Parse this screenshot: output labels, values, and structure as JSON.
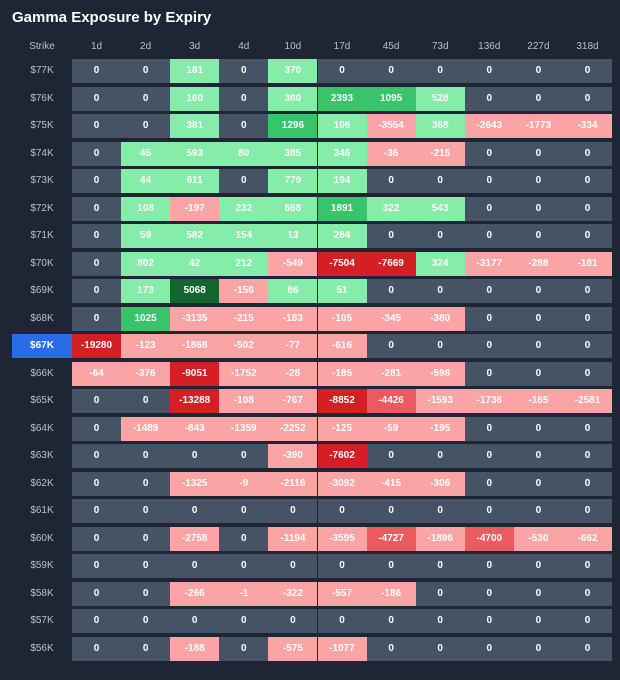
{
  "title": "Gamma Exposure by Expiry",
  "strike_header": "Strike",
  "current_strike": "$67K",
  "colors": {
    "background": "#1e2636",
    "neutral": "#465365",
    "pos_light": "#86ecaa",
    "pos_mid": "#37c46a",
    "pos_dark": "#14652e",
    "neg_light": "#fba4a6",
    "neg_mid": "#ea5a5e",
    "neg_dark": "#d42024",
    "current_strike": "#2b6be6"
  },
  "chart_data": {
    "type": "heatmap",
    "title": "Gamma Exposure by Expiry",
    "x": [
      "1d",
      "2d",
      "3d",
      "4d",
      "10d",
      "17d",
      "45d",
      "73d",
      "136d",
      "227d",
      "318d"
    ],
    "y": [
      "$77K",
      "$76K",
      "$75K",
      "$74K",
      "$73K",
      "$72K",
      "$71K",
      "$70K",
      "$69K",
      "$68K",
      "$67K",
      "$66K",
      "$65K",
      "$64K",
      "$63K",
      "$62K",
      "$61K",
      "$60K",
      "$59K",
      "$58K",
      "$57K",
      "$56K"
    ],
    "values": [
      [
        0,
        0,
        181,
        0,
        370,
        0,
        0,
        0,
        0,
        0,
        0
      ],
      [
        0,
        0,
        160,
        0,
        360,
        2393,
        1095,
        528,
        0,
        0,
        0
      ],
      [
        0,
        0,
        381,
        0,
        1296,
        106,
        -3554,
        368,
        -2643,
        -1773,
        -334
      ],
      [
        0,
        45,
        593,
        80,
        385,
        346,
        -36,
        -215,
        0,
        0,
        0
      ],
      [
        0,
        44,
        611,
        0,
        779,
        194,
        0,
        0,
        0,
        0,
        0
      ],
      [
        0,
        108,
        -197,
        232,
        668,
        1891,
        322,
        543,
        0,
        0,
        0
      ],
      [
        0,
        59,
        582,
        154,
        13,
        284,
        0,
        0,
        0,
        0,
        0
      ],
      [
        0,
        802,
        42,
        212,
        -549,
        -7504,
        -7669,
        324,
        -3177,
        -288,
        -181
      ],
      [
        0,
        173,
        5068,
        -156,
        86,
        51,
        0,
        0,
        0,
        0,
        0
      ],
      [
        0,
        1025,
        -3135,
        -215,
        -183,
        -105,
        -345,
        -380,
        0,
        0,
        0
      ],
      [
        -19280,
        -123,
        -1868,
        -502,
        -77,
        -616,
        0,
        0,
        0,
        0,
        0
      ],
      [
        -64,
        -376,
        -9051,
        -1752,
        -28,
        -185,
        -281,
        -598,
        0,
        0,
        0
      ],
      [
        0,
        0,
        -13288,
        -108,
        -767,
        -8852,
        -4426,
        -1593,
        -1736,
        -165,
        -2581
      ],
      [
        0,
        -1489,
        -843,
        -1359,
        -2252,
        -125,
        -59,
        -195,
        0,
        0,
        0
      ],
      [
        0,
        0,
        0,
        0,
        -390,
        -7602,
        0,
        0,
        0,
        0,
        0
      ],
      [
        0,
        0,
        -1325,
        -9,
        -2116,
        -3092,
        -415,
        -306,
        0,
        0,
        0
      ],
      [
        0,
        0,
        0,
        0,
        0,
        0,
        0,
        0,
        0,
        0,
        0
      ],
      [
        0,
        0,
        -2758,
        0,
        -1194,
        -3595,
        -4727,
        -1896,
        -4700,
        -530,
        -662
      ],
      [
        0,
        0,
        0,
        0,
        0,
        0,
        0,
        0,
        0,
        0,
        0
      ],
      [
        0,
        0,
        -266,
        -1,
        -322,
        -557,
        -186,
        0,
        0,
        0,
        0
      ],
      [
        0,
        0,
        0,
        0,
        0,
        0,
        0,
        0,
        0,
        0,
        0
      ],
      [
        0,
        0,
        -188,
        0,
        -575,
        -1077,
        0,
        0,
        0,
        0,
        0
      ]
    ]
  }
}
